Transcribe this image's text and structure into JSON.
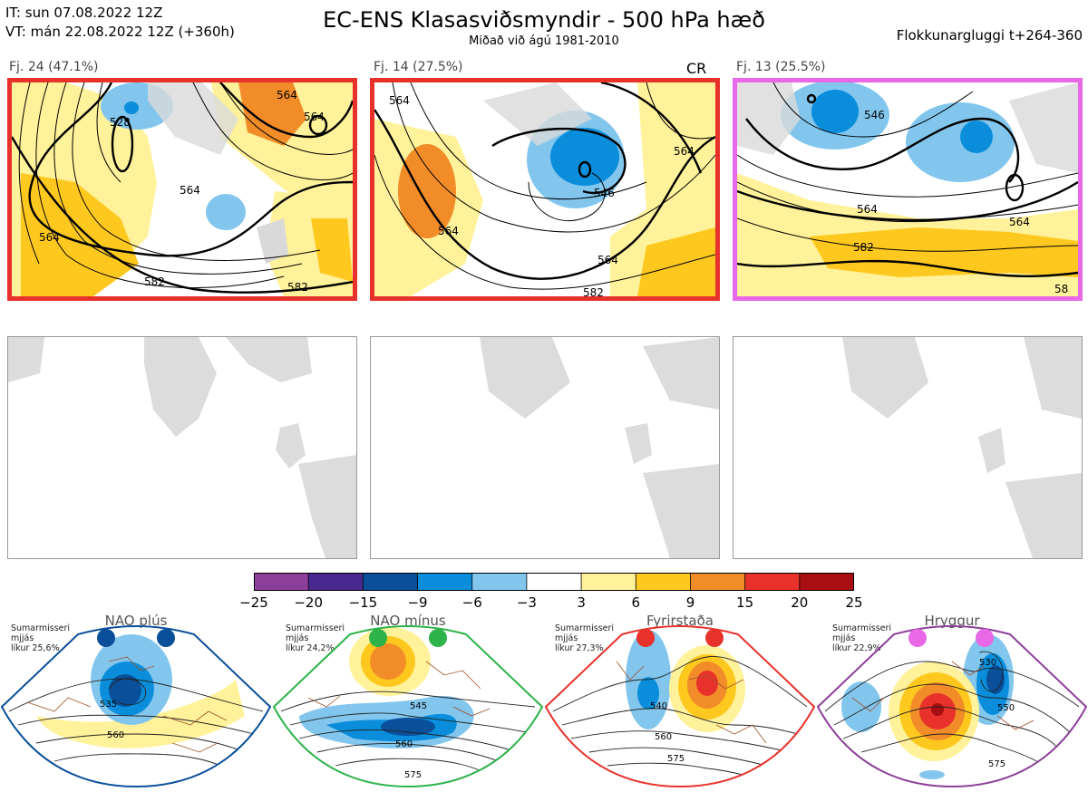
{
  "header": {
    "it_line": "IT: sun 07.08.2022 12Z",
    "vt_line": "VT: mán 22.08.2022 12Z  (+360h)",
    "title": "EC-ENS Klasasviðsmyndir - 500 hPa hæð",
    "subtitle": "Miðað við ágú 1981-2010",
    "window": "Flokkunargluggi t+264-360"
  },
  "clusters": [
    {
      "label": "Fj. 24 (47.1%)",
      "border_color": "#e8312a",
      "extra": "",
      "contours": [
        "528",
        "564",
        "564",
        "564",
        "564",
        "582",
        "582"
      ]
    },
    {
      "label": "Fj. 14 (27.5%)",
      "border_color": "#e8312a",
      "extra": "CR",
      "contours": [
        "564",
        "564",
        "564",
        "546",
        "564",
        "582"
      ]
    },
    {
      "label": "Fj. 13 (25.5%)",
      "border_color": "#e868e8",
      "extra": "",
      "contours": [
        "546",
        "564",
        "564",
        "582",
        "58"
      ]
    }
  ],
  "colorbar": {
    "ticks": [
      "−25",
      "−20",
      "−15",
      "−9",
      "−6",
      "−3",
      "3",
      "6",
      "9",
      "15",
      "20",
      "25"
    ],
    "colors": [
      "#8c3f98",
      "#48288e",
      "#0a4f9a",
      "#0a8edb",
      "#82c6ee",
      "#ffffff",
      "#fff29a",
      "#ffc81f",
      "#f28c28",
      "#e8312a",
      "#a80e12"
    ]
  },
  "regimes": [
    {
      "name": "NAO plús",
      "info": [
        "Sumarmisseri",
        "mjjás",
        "líkur 25,6%"
      ],
      "color": "#0a4f9a",
      "contours": [
        "535",
        "560"
      ]
    },
    {
      "name": "NAO mínus",
      "info": [
        "Sumarmisseri",
        "mjjás",
        "líkur 24,2%"
      ],
      "color": "#2db34a",
      "contours": [
        "545",
        "560",
        "575"
      ]
    },
    {
      "name": "Fyrirstaða",
      "info": [
        "Sumarmisseri",
        "mjjás",
        "líkur 27,3%"
      ],
      "color": "#e8312a",
      "contours": [
        "540",
        "560",
        "575"
      ]
    },
    {
      "name": "Hryggur",
      "info": [
        "Sumarmisseri",
        "mjjás",
        "líkur 22,9%"
      ],
      "color": "#e868e8",
      "contours": [
        "530",
        "550",
        "575"
      ]
    }
  ]
}
